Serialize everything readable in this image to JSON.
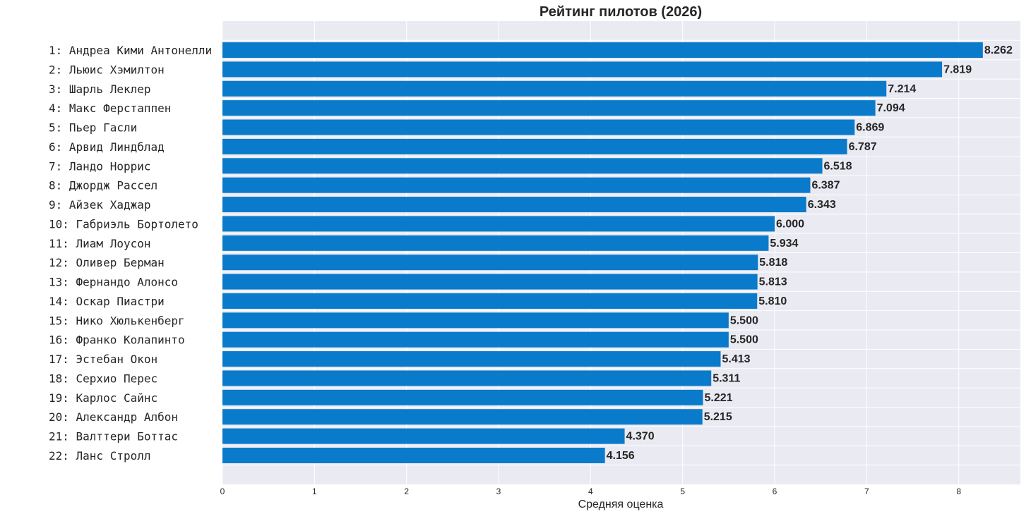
{
  "chart_data": {
    "type": "bar",
    "orientation": "horizontal",
    "title": "Рейтинг пилотов (2026)",
    "xlabel": "Средняя оценка",
    "ylabel": "",
    "xlim": [
      0,
      8.67
    ],
    "xticks": [
      "0",
      "1",
      "2",
      "3",
      "4",
      "5",
      "6",
      "7",
      "8"
    ],
    "grid": true,
    "bar_color": "#0A7ACB",
    "background_color": "#EAEAF2",
    "categories": [
      "1: Андреа Кими Антонелли",
      "2: Льюис Хэмилтон",
      "3: Шарль Леклер",
      "4: Макс Ферстаппен",
      "5: Пьер Гасли",
      "6: Арвид Линдблад",
      "7: Ландо Норрис",
      "8: Джордж Рассел",
      "9: Айзек Хаджар",
      "10: Габриэль Бортолето",
      "11: Лиам Лоусон",
      "12: Оливер Берман",
      "13: Фернандо Алонсо",
      "14: Оскар Пиастри",
      "15: Нико Хюлькенберг",
      "16: Франко Колапинто",
      "17: Эстебан Окон",
      "18: Серхио Перес",
      "19: Карлос Сайнс",
      "20: Александр Албон",
      "21: Валттери Боттас",
      "22: Ланс Стролл"
    ],
    "values": [
      8.262,
      7.819,
      7.214,
      7.094,
      6.869,
      6.787,
      6.518,
      6.387,
      6.343,
      6.0,
      5.934,
      5.818,
      5.813,
      5.81,
      5.5,
      5.5,
      5.413,
      5.311,
      5.221,
      5.215,
      4.37,
      4.156
    ],
    "value_labels": [
      "8.262",
      "7.819",
      "7.214",
      "7.094",
      "6.869",
      "6.787",
      "6.518",
      "6.387",
      "6.343",
      "6.000",
      "5.934",
      "5.818",
      "5.813",
      "5.810",
      "5.500",
      "5.500",
      "5.413",
      "5.311",
      "5.221",
      "5.215",
      "4.370",
      "4.156"
    ]
  }
}
